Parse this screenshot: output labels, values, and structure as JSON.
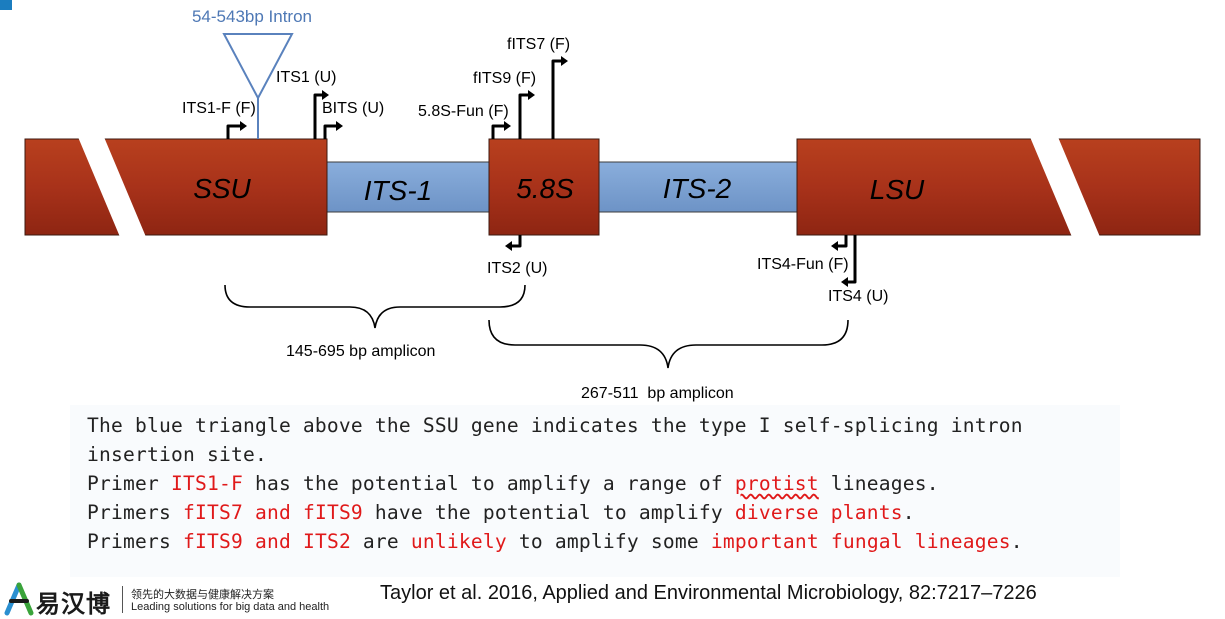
{
  "diagram": {
    "intron_label": "54-543bp Intron",
    "segments": {
      "ssu": "SSU",
      "its1": "ITS-1",
      "s58": "5.8S",
      "its2": "ITS-2",
      "lsu": "LSU"
    },
    "primers": {
      "its1f": "ITS1-F (F)",
      "its1u": "ITS1 (U)",
      "bits": "BITS (U)",
      "fun58s": "5.8S-Fun (F)",
      "fits9": "fITS9 (F)",
      "fits7": "fITS7 (F)",
      "its2u": "ITS2 (U)",
      "its4fun": "ITS4-Fun (F)",
      "its4u": "ITS4 (U)"
    },
    "amplicons": {
      "first": "145-695 bp amplicon",
      "second": "267-511  bp amplicon"
    },
    "colors": {
      "gene_red": "#a8321a",
      "spacer_blue": "#7a9fd0",
      "intron_blue": "#5a82bd"
    }
  },
  "notes": {
    "line1": "The blue triangle above the SSU gene indicates the type I self-splicing intron",
    "line2": "insertion site.",
    "line3_a": "Primer ",
    "line3_b": "ITS1-F",
    "line3_c": " has the potential to amplify a range of ",
    "line3_d": "protist",
    "line3_e": " lineages.",
    "line4_a": "Primers ",
    "line4_b": "fITS7 and fITS9",
    "line4_c": " have the potential to amplify ",
    "line4_d": "diverse plants",
    "line4_e": ".",
    "line5_a": "Primers ",
    "line5_b": "fITS9 and ITS2",
    "line5_c": " are ",
    "line5_d": "unlikely",
    "line5_e": " to amplify some ",
    "line5_f": "important fungal lineages",
    "line5_g": "."
  },
  "footer": {
    "logo_text": "易汉博",
    "tagline_cn": "领先的大数据与健康解决方案",
    "tagline_en": "Leading solutions for big data and health",
    "citation": "Taylor et al. 2016, Applied and Environmental Microbiology, 82:7217–7226"
  }
}
